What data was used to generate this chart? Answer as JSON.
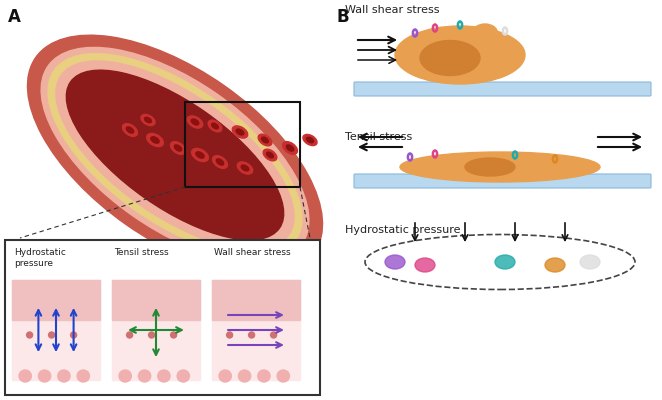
{
  "bg_color": "#ffffff",
  "panel_A_label": "A",
  "panel_B_label": "B",
  "section_B_labels": [
    "Wall shear stress",
    "Tensil stress",
    "Hydrostatic pressure"
  ],
  "box_label_hydrostatic": "Hydrostatic\npressure",
  "box_label_tensil": "Tensil stress",
  "box_label_wall": "Wall shear stress",
  "vessel_outer_color": "#c8584a",
  "vessel_middle_color": "#e8a090",
  "vessel_inner_bg": "#8B1A1A",
  "vessel_wall_color": "#f5c5b0",
  "vessel_yellow_layer": "#e8d080",
  "vessel_pink_layer": "#f0b0a0",
  "rbc_color": "#c83030",
  "cell_body_color": "#e8a050",
  "cell_inner_color": "#d08030",
  "substrate_color": "#b8d8f0",
  "box_bg_color": "#fce8e8",
  "box_border_color": "#333333",
  "arrow_blue": "#2244cc",
  "arrow_green": "#228833",
  "arrow_purple": "#7744bb",
  "arrow_black": "#111111",
  "receptor_purple": "#9955cc",
  "receptor_pink": "#dd4488",
  "receptor_teal": "#22aaaa",
  "receptor_white": "#dddddd",
  "receptor_orange": "#dd8822"
}
